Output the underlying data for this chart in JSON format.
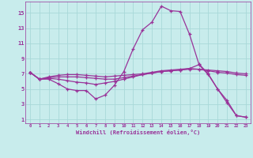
{
  "title": "",
  "xlabel": "Windchill (Refroidissement éolien,°C)",
  "bg_color": "#c8ecec",
  "grid_color": "#a8d8d8",
  "line_color": "#993399",
  "xlim": [
    -0.5,
    23.5
  ],
  "ylim": [
    0.5,
    16.5
  ],
  "xticks": [
    0,
    1,
    2,
    3,
    4,
    5,
    6,
    7,
    8,
    9,
    10,
    11,
    12,
    13,
    14,
    15,
    16,
    17,
    18,
    19,
    20,
    21,
    22,
    23
  ],
  "yticks": [
    1,
    3,
    5,
    7,
    9,
    11,
    13,
    15
  ],
  "line1_y": [
    7.2,
    6.3,
    6.3,
    5.7,
    5.0,
    4.8,
    4.8,
    3.7,
    4.2,
    5.5,
    7.3,
    10.3,
    12.8,
    13.8,
    15.9,
    15.3,
    15.2,
    12.2,
    8.3,
    7.0,
    5.0,
    3.2,
    1.5,
    1.3
  ],
  "line2_y": [
    7.2,
    6.3,
    6.4,
    6.3,
    6.1,
    5.9,
    5.8,
    5.6,
    5.8,
    6.0,
    6.3,
    6.6,
    6.9,
    7.1,
    7.3,
    7.4,
    7.5,
    7.7,
    8.2,
    6.9,
    5.0,
    3.5,
    1.5,
    1.3
  ],
  "line3_y": [
    7.2,
    6.3,
    6.5,
    6.6,
    6.6,
    6.6,
    6.5,
    6.4,
    6.3,
    6.3,
    6.5,
    6.7,
    6.9,
    7.1,
    7.3,
    7.4,
    7.5,
    7.6,
    7.6,
    7.5,
    7.4,
    7.3,
    7.1,
    7.0
  ],
  "line4_y": [
    7.2,
    6.3,
    6.6,
    6.8,
    6.9,
    6.9,
    6.8,
    6.7,
    6.6,
    6.7,
    6.8,
    6.9,
    7.0,
    7.2,
    7.4,
    7.5,
    7.6,
    7.7,
    7.6,
    7.4,
    7.2,
    7.1,
    6.9,
    6.8
  ]
}
